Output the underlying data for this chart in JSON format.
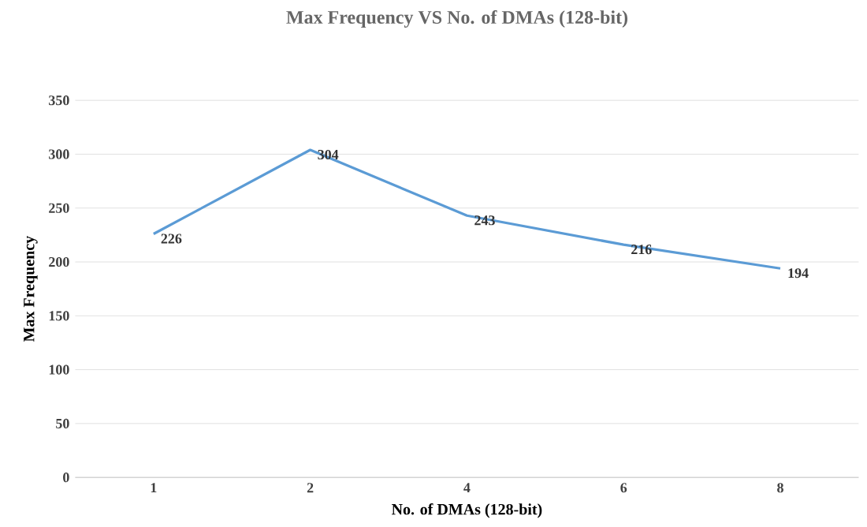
{
  "chart_data": {
    "type": "line",
    "title": "Max Frequency VS No. of DMAs (128-bit)",
    "xlabel": "No. of DMAs (128-bit)",
    "ylabel": "Max Frequency",
    "categories": [
      "1",
      "2",
      "4",
      "6",
      "8"
    ],
    "values": [
      226,
      304,
      243,
      216,
      194
    ],
    "color": "#5b9bd5",
    "marker": "none",
    "line_style": "solid",
    "ylim": [
      0,
      350
    ],
    "yticks": [
      0,
      50,
      100,
      150,
      200,
      250,
      300,
      350
    ],
    "grid": "y",
    "data_labels": true
  }
}
